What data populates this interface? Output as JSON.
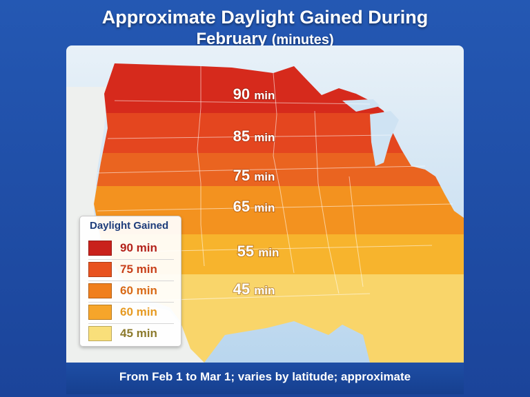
{
  "title": {
    "line1": "Approximate Daylight Gained During",
    "line2_main": "February",
    "line2_unit": "(minutes)"
  },
  "zones": [
    {
      "value": "90",
      "unit": "min",
      "color": "#d62a1c"
    },
    {
      "value": "85",
      "unit": "min",
      "color": "#e4461f"
    },
    {
      "value": "75",
      "unit": "min",
      "color": "#ea6420"
    },
    {
      "value": "65",
      "unit": "min",
      "color": "#f3921f"
    },
    {
      "value": "55",
      "unit": "min",
      "color": "#f7b42d"
    },
    {
      "value": "45",
      "unit": "min",
      "color": "#f9d56a"
    }
  ],
  "legend": {
    "title": "Daylight Gained",
    "items": [
      {
        "label": "90 min",
        "color": "#c9211b",
        "text_color": "#b3221a"
      },
      {
        "label": "75 min",
        "color": "#e8521f",
        "text_color": "#c8401a"
      },
      {
        "label": "60 min",
        "color": "#f07f1d",
        "text_color": "#d86a17"
      },
      {
        "label": "60 min",
        "color": "#f6a52a",
        "text_color": "#e69a22"
      },
      {
        "label": "45 min",
        "color": "#f9df7a",
        "text_color": "#8c7a2c"
      }
    ]
  },
  "footer": {
    "note": "From Feb 1 to Mar 1; varies by latitude; approximate"
  },
  "colors": {
    "frame": "#1d4aa1",
    "ocean": "#cfe3f3",
    "unshaded_land": "#f2f0ea"
  }
}
